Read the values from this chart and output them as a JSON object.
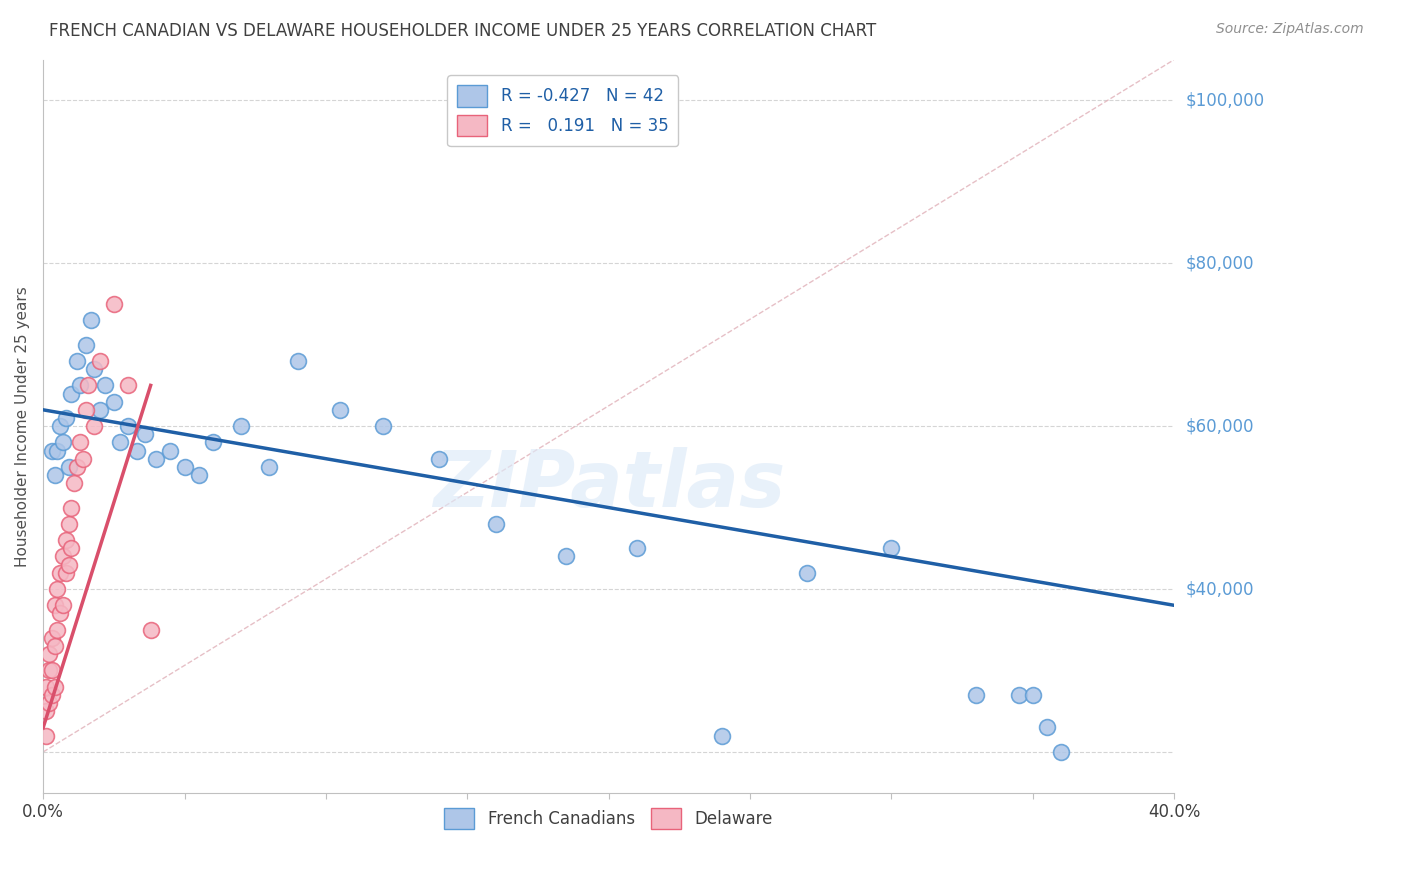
{
  "title": "FRENCH CANADIAN VS DELAWARE HOUSEHOLDER INCOME UNDER 25 YEARS CORRELATION CHART",
  "source": "Source: ZipAtlas.com",
  "ylabel": "Householder Income Under 25 years",
  "xlim": [
    0.0,
    0.4
  ],
  "ylim": [
    15000,
    105000
  ],
  "yticks": [
    20000,
    40000,
    60000,
    80000,
    100000
  ],
  "right_ytick_labels": [
    "",
    "$40,000",
    "$60,000",
    "$80,000",
    "$100,000"
  ],
  "xticks": [
    0.0,
    0.05,
    0.1,
    0.15,
    0.2,
    0.25,
    0.3,
    0.35,
    0.4
  ],
  "xtick_labels": [
    "0.0%",
    "",
    "",
    "",
    "",
    "",
    "",
    "",
    "40.0%"
  ],
  "french_canadians": {
    "x": [
      0.003,
      0.004,
      0.005,
      0.006,
      0.007,
      0.008,
      0.009,
      0.01,
      0.012,
      0.013,
      0.015,
      0.017,
      0.018,
      0.02,
      0.022,
      0.025,
      0.027,
      0.03,
      0.033,
      0.036,
      0.04,
      0.045,
      0.05,
      0.055,
      0.06,
      0.07,
      0.08,
      0.09,
      0.105,
      0.12,
      0.14,
      0.16,
      0.185,
      0.21,
      0.24,
      0.27,
      0.3,
      0.33,
      0.345,
      0.35,
      0.355,
      0.36
    ],
    "y": [
      57000,
      54000,
      57000,
      60000,
      58000,
      61000,
      55000,
      64000,
      68000,
      65000,
      70000,
      73000,
      67000,
      62000,
      65000,
      63000,
      58000,
      60000,
      57000,
      59000,
      56000,
      57000,
      55000,
      54000,
      58000,
      60000,
      55000,
      68000,
      62000,
      60000,
      56000,
      48000,
      44000,
      45000,
      22000,
      42000,
      45000,
      27000,
      27000,
      27000,
      23000,
      20000
    ],
    "color": "#aec6e8",
    "edge_color": "#5b9bd5",
    "label": "French Canadians",
    "R": -0.427,
    "N": 42
  },
  "delaware": {
    "x": [
      0.001,
      0.001,
      0.001,
      0.002,
      0.002,
      0.002,
      0.003,
      0.003,
      0.003,
      0.004,
      0.004,
      0.004,
      0.005,
      0.005,
      0.006,
      0.006,
      0.007,
      0.007,
      0.008,
      0.008,
      0.009,
      0.009,
      0.01,
      0.01,
      0.011,
      0.012,
      0.013,
      0.014,
      0.015,
      0.016,
      0.018,
      0.02,
      0.025,
      0.03,
      0.038
    ],
    "y": [
      22000,
      25000,
      28000,
      30000,
      32000,
      26000,
      34000,
      30000,
      27000,
      33000,
      38000,
      28000,
      35000,
      40000,
      42000,
      37000,
      44000,
      38000,
      46000,
      42000,
      48000,
      43000,
      50000,
      45000,
      53000,
      55000,
      58000,
      56000,
      62000,
      65000,
      60000,
      68000,
      75000,
      65000,
      35000
    ],
    "color": "#f5b8c4",
    "edge_color": "#e8637a",
    "label": "Delaware",
    "R": 0.191,
    "N": 35
  },
  "background_color": "#ffffff",
  "grid_color": "#d5d5d5",
  "title_color": "#404040",
  "source_color": "#909090",
  "right_label_color": "#5b9bd5",
  "watermark_text": "ZIPatlas",
  "blue_line_color": "#1f5fa6",
  "pink_line_color": "#d94f6b",
  "ref_line_color": "#e0b0b8"
}
